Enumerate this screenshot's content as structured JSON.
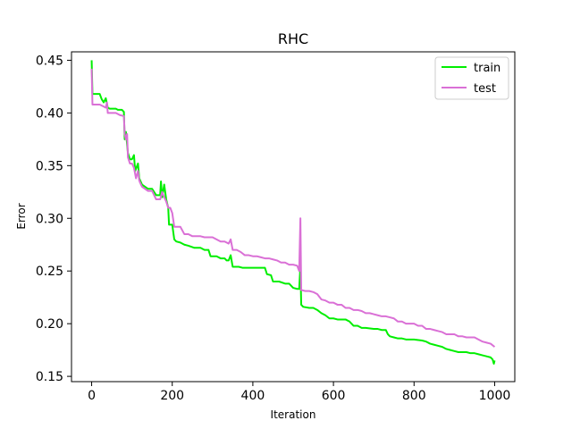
{
  "chart_data": {
    "type": "line",
    "title": "RHC",
    "xlabel": "Iteration",
    "ylabel": "Error",
    "xlim": [
      -50,
      1050
    ],
    "ylim": [
      0.145,
      0.458
    ],
    "xticks": [
      0,
      200,
      400,
      600,
      800,
      1000
    ],
    "yticks": [
      0.15,
      0.2,
      0.25,
      0.3,
      0.35,
      0.4,
      0.45
    ],
    "ytick_labels": [
      "0.15",
      "0.20",
      "0.25",
      "0.30",
      "0.35",
      "0.40",
      "0.45"
    ],
    "grid": false,
    "legend_position": "top-right",
    "series": [
      {
        "name": "train",
        "color": "#00ee00",
        "points": [
          [
            0,
            0.45
          ],
          [
            2,
            0.418
          ],
          [
            20,
            0.418
          ],
          [
            25,
            0.413
          ],
          [
            30,
            0.41
          ],
          [
            35,
            0.414
          ],
          [
            40,
            0.405
          ],
          [
            45,
            0.404
          ],
          [
            60,
            0.404
          ],
          [
            65,
            0.403
          ],
          [
            75,
            0.403
          ],
          [
            80,
            0.401
          ],
          [
            82,
            0.375
          ],
          [
            85,
            0.382
          ],
          [
            90,
            0.362
          ],
          [
            95,
            0.356
          ],
          [
            100,
            0.356
          ],
          [
            105,
            0.36
          ],
          [
            108,
            0.345
          ],
          [
            115,
            0.352
          ],
          [
            118,
            0.338
          ],
          [
            125,
            0.332
          ],
          [
            140,
            0.328
          ],
          [
            150,
            0.328
          ],
          [
            160,
            0.322
          ],
          [
            170,
            0.322
          ],
          [
            172,
            0.335
          ],
          [
            175,
            0.32
          ],
          [
            180,
            0.332
          ],
          [
            185,
            0.318
          ],
          [
            190,
            0.31
          ],
          [
            192,
            0.294
          ],
          [
            200,
            0.294
          ],
          [
            205,
            0.28
          ],
          [
            210,
            0.278
          ],
          [
            220,
            0.277
          ],
          [
            230,
            0.275
          ],
          [
            240,
            0.274
          ],
          [
            255,
            0.272
          ],
          [
            270,
            0.272
          ],
          [
            280,
            0.27
          ],
          [
            290,
            0.27
          ],
          [
            295,
            0.264
          ],
          [
            310,
            0.264
          ],
          [
            320,
            0.262
          ],
          [
            330,
            0.262
          ],
          [
            335,
            0.26
          ],
          [
            340,
            0.26
          ],
          [
            345,
            0.265
          ],
          [
            350,
            0.254
          ],
          [
            365,
            0.254
          ],
          [
            375,
            0.253
          ],
          [
            390,
            0.253
          ],
          [
            400,
            0.253
          ],
          [
            420,
            0.253
          ],
          [
            430,
            0.253
          ],
          [
            435,
            0.247
          ],
          [
            445,
            0.246
          ],
          [
            450,
            0.24
          ],
          [
            465,
            0.24
          ],
          [
            480,
            0.238
          ],
          [
            490,
            0.238
          ],
          [
            500,
            0.234
          ],
          [
            510,
            0.233
          ],
          [
            515,
            0.233
          ],
          [
            518,
            0.255
          ],
          [
            520,
            0.218
          ],
          [
            525,
            0.216
          ],
          [
            540,
            0.215
          ],
          [
            550,
            0.215
          ],
          [
            560,
            0.213
          ],
          [
            570,
            0.21
          ],
          [
            580,
            0.208
          ],
          [
            590,
            0.205
          ],
          [
            600,
            0.205
          ],
          [
            610,
            0.204
          ],
          [
            620,
            0.204
          ],
          [
            630,
            0.204
          ],
          [
            640,
            0.202
          ],
          [
            650,
            0.198
          ],
          [
            660,
            0.198
          ],
          [
            670,
            0.196
          ],
          [
            680,
            0.196
          ],
          [
            700,
            0.195
          ],
          [
            710,
            0.195
          ],
          [
            720,
            0.194
          ],
          [
            730,
            0.194
          ],
          [
            735,
            0.19
          ],
          [
            740,
            0.188
          ],
          [
            750,
            0.187
          ],
          [
            760,
            0.186
          ],
          [
            770,
            0.186
          ],
          [
            780,
            0.185
          ],
          [
            800,
            0.185
          ],
          [
            820,
            0.184
          ],
          [
            830,
            0.183
          ],
          [
            840,
            0.181
          ],
          [
            850,
            0.18
          ],
          [
            860,
            0.179
          ],
          [
            870,
            0.178
          ],
          [
            880,
            0.176
          ],
          [
            890,
            0.175
          ],
          [
            900,
            0.174
          ],
          [
            910,
            0.173
          ],
          [
            930,
            0.173
          ],
          [
            940,
            0.172
          ],
          [
            950,
            0.172
          ],
          [
            960,
            0.171
          ],
          [
            970,
            0.17
          ],
          [
            980,
            0.169
          ],
          [
            990,
            0.168
          ],
          [
            995,
            0.166
          ],
          [
            998,
            0.162
          ],
          [
            1000,
            0.165
          ]
        ]
      },
      {
        "name": "test",
        "color": "#da70d6",
        "points": [
          [
            0,
            0.442
          ],
          [
            2,
            0.408
          ],
          [
            20,
            0.408
          ],
          [
            30,
            0.406
          ],
          [
            35,
            0.405
          ],
          [
            38,
            0.41
          ],
          [
            40,
            0.4
          ],
          [
            60,
            0.4
          ],
          [
            70,
            0.398
          ],
          [
            80,
            0.397
          ],
          [
            82,
            0.38
          ],
          [
            85,
            0.375
          ],
          [
            88,
            0.38
          ],
          [
            90,
            0.358
          ],
          [
            95,
            0.352
          ],
          [
            100,
            0.352
          ],
          [
            105,
            0.348
          ],
          [
            110,
            0.338
          ],
          [
            115,
            0.345
          ],
          [
            118,
            0.336
          ],
          [
            120,
            0.334
          ],
          [
            125,
            0.33
          ],
          [
            140,
            0.326
          ],
          [
            150,
            0.326
          ],
          [
            160,
            0.318
          ],
          [
            170,
            0.318
          ],
          [
            175,
            0.325
          ],
          [
            180,
            0.32
          ],
          [
            185,
            0.316
          ],
          [
            190,
            0.31
          ],
          [
            195,
            0.31
          ],
          [
            200,
            0.305
          ],
          [
            205,
            0.292
          ],
          [
            220,
            0.292
          ],
          [
            230,
            0.285
          ],
          [
            240,
            0.285
          ],
          [
            250,
            0.283
          ],
          [
            260,
            0.283
          ],
          [
            270,
            0.283
          ],
          [
            280,
            0.282
          ],
          [
            290,
            0.282
          ],
          [
            300,
            0.282
          ],
          [
            310,
            0.28
          ],
          [
            320,
            0.278
          ],
          [
            330,
            0.278
          ],
          [
            340,
            0.276
          ],
          [
            345,
            0.28
          ],
          [
            350,
            0.27
          ],
          [
            360,
            0.27
          ],
          [
            370,
            0.268
          ],
          [
            380,
            0.265
          ],
          [
            390,
            0.265
          ],
          [
            400,
            0.264
          ],
          [
            410,
            0.264
          ],
          [
            420,
            0.263
          ],
          [
            430,
            0.262
          ],
          [
            440,
            0.262
          ],
          [
            450,
            0.261
          ],
          [
            460,
            0.26
          ],
          [
            470,
            0.258
          ],
          [
            480,
            0.258
          ],
          [
            490,
            0.256
          ],
          [
            500,
            0.256
          ],
          [
            510,
            0.255
          ],
          [
            515,
            0.25
          ],
          [
            518,
            0.3
          ],
          [
            520,
            0.232
          ],
          [
            530,
            0.231
          ],
          [
            540,
            0.231
          ],
          [
            550,
            0.23
          ],
          [
            560,
            0.228
          ],
          [
            570,
            0.223
          ],
          [
            580,
            0.222
          ],
          [
            590,
            0.22
          ],
          [
            600,
            0.22
          ],
          [
            610,
            0.218
          ],
          [
            620,
            0.218
          ],
          [
            630,
            0.215
          ],
          [
            640,
            0.215
          ],
          [
            650,
            0.213
          ],
          [
            660,
            0.213
          ],
          [
            670,
            0.212
          ],
          [
            680,
            0.21
          ],
          [
            690,
            0.21
          ],
          [
            700,
            0.209
          ],
          [
            710,
            0.208
          ],
          [
            720,
            0.207
          ],
          [
            730,
            0.207
          ],
          [
            740,
            0.206
          ],
          [
            750,
            0.205
          ],
          [
            760,
            0.202
          ],
          [
            770,
            0.202
          ],
          [
            780,
            0.2
          ],
          [
            790,
            0.2
          ],
          [
            800,
            0.2
          ],
          [
            810,
            0.198
          ],
          [
            820,
            0.198
          ],
          [
            830,
            0.195
          ],
          [
            840,
            0.195
          ],
          [
            850,
            0.194
          ],
          [
            860,
            0.193
          ],
          [
            870,
            0.192
          ],
          [
            880,
            0.19
          ],
          [
            890,
            0.19
          ],
          [
            900,
            0.19
          ],
          [
            910,
            0.188
          ],
          [
            920,
            0.188
          ],
          [
            930,
            0.187
          ],
          [
            940,
            0.187
          ],
          [
            950,
            0.187
          ],
          [
            960,
            0.185
          ],
          [
            970,
            0.183
          ],
          [
            980,
            0.182
          ],
          [
            990,
            0.181
          ],
          [
            1000,
            0.178
          ]
        ]
      }
    ]
  }
}
